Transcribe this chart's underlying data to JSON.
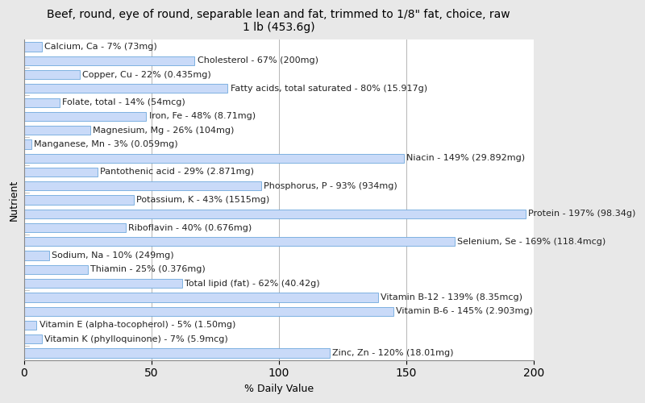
{
  "title": "Beef, round, eye of round, separable lean and fat, trimmed to 1/8\" fat, choice, raw\n1 lb (453.6g)",
  "xlabel": "% Daily Value",
  "ylabel": "Nutrient",
  "nutrients": [
    "Calcium, Ca - 7% (73mg)",
    "Cholesterol - 67% (200mg)",
    "Copper, Cu - 22% (0.435mg)",
    "Fatty acids, total saturated - 80% (15.917g)",
    "Folate, total - 14% (54mcg)",
    "Iron, Fe - 48% (8.71mg)",
    "Magnesium, Mg - 26% (104mg)",
    "Manganese, Mn - 3% (0.059mg)",
    "Niacin - 149% (29.892mg)",
    "Pantothenic acid - 29% (2.871mg)",
    "Phosphorus, P - 93% (934mg)",
    "Potassium, K - 43% (1515mg)",
    "Protein - 197% (98.34g)",
    "Riboflavin - 40% (0.676mg)",
    "Selenium, Se - 169% (118.4mcg)",
    "Sodium, Na - 10% (249mg)",
    "Thiamin - 25% (0.376mg)",
    "Total lipid (fat) - 62% (40.42g)",
    "Vitamin B-12 - 139% (8.35mcg)",
    "Vitamin B-6 - 145% (2.903mg)",
    "Vitamin E (alpha-tocopherol) - 5% (1.50mg)",
    "Vitamin K (phylloquinone) - 7% (5.9mcg)",
    "Zinc, Zn - 120% (18.01mg)"
  ],
  "values": [
    7,
    67,
    22,
    80,
    14,
    48,
    26,
    3,
    149,
    29,
    93,
    43,
    197,
    40,
    169,
    10,
    25,
    62,
    139,
    145,
    5,
    7,
    120
  ],
  "bar_color": "#c9daf8",
  "bar_edge_color": "#6fa8dc",
  "bg_color": "#e8e8e8",
  "plot_bg_color": "#ffffff",
  "title_fontsize": 10,
  "axis_label_fontsize": 9,
  "label_fontsize": 8,
  "xlim": [
    0,
    200
  ],
  "xticks": [
    0,
    50,
    100,
    150,
    200
  ],
  "grid_color": "#aaaaaa"
}
